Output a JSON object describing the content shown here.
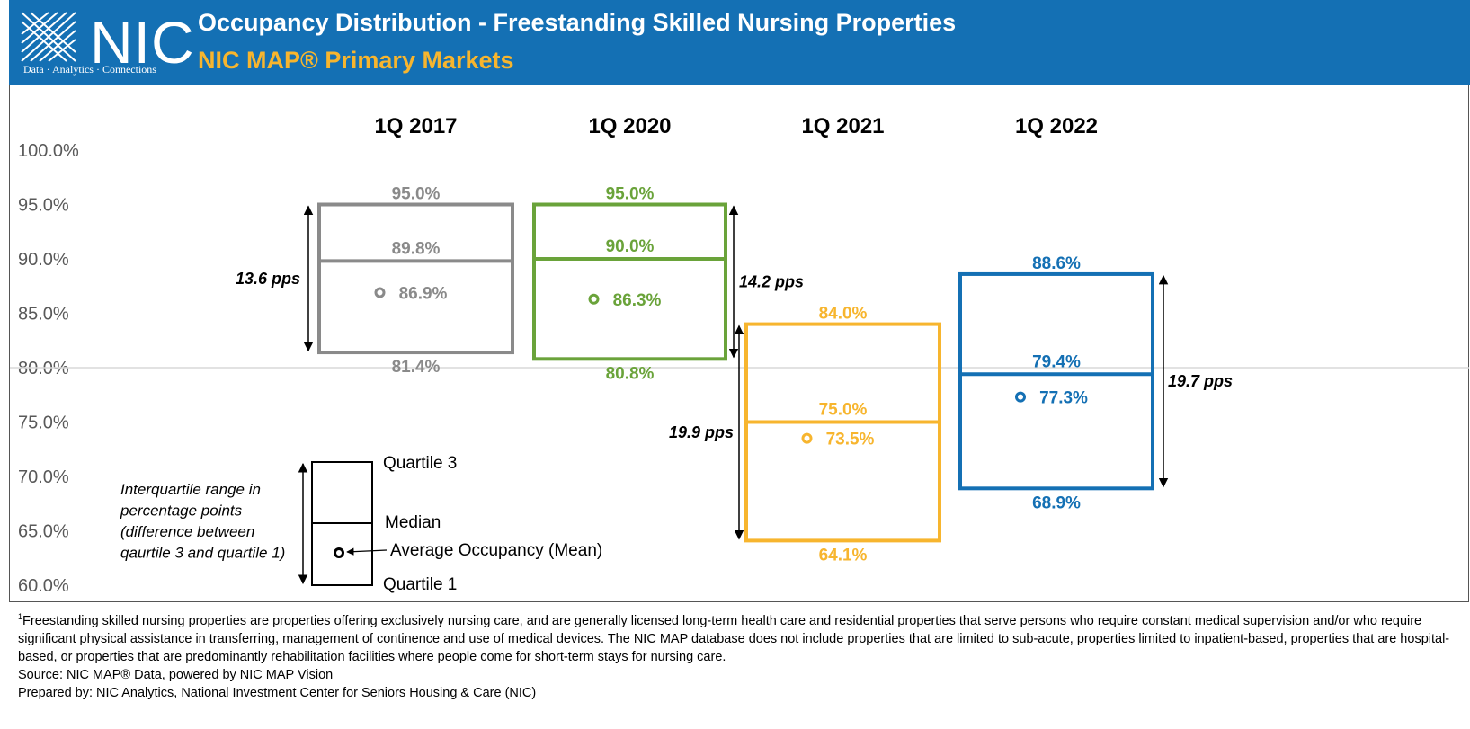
{
  "header": {
    "logo_text": "NIC",
    "logo_tagline": "Data · Analytics · Connections",
    "title": "Occupancy Distribution - Freestanding Skilled Nursing Properties",
    "subtitle": "NIC MAP® Primary Markets",
    "bg_color": "#1470b4",
    "subtitle_color": "#f7b52e"
  },
  "chart_data": {
    "type": "box",
    "ylim": [
      60,
      100
    ],
    "yticks": [
      "100.0%",
      "95.0%",
      "90.0%",
      "85.0%",
      "80.0%",
      "75.0%",
      "70.0%",
      "65.0%",
      "60.0%"
    ],
    "reference_line": 80,
    "series": [
      {
        "name": "1Q 2017",
        "color": "#8a8a8a",
        "q3": 95.0,
        "median": 89.8,
        "mean": 86.9,
        "q1": 81.4,
        "q3_label": "95.0%",
        "median_label": "89.8%",
        "mean_label": "86.9%",
        "q1_label": "81.4%",
        "iqr_label": "13.6 pps",
        "iqr_side": "left"
      },
      {
        "name": "1Q 2020",
        "color": "#6aa33a",
        "q3": 95.0,
        "median": 90.0,
        "mean": 86.3,
        "q1": 80.8,
        "q3_label": "95.0%",
        "median_label": "90.0%",
        "mean_label": "86.3%",
        "q1_label": "80.8%",
        "iqr_label": "14.2 pps",
        "iqr_side": "right"
      },
      {
        "name": "1Q 2021",
        "color": "#f7b52e",
        "q3": 84.0,
        "median": 75.0,
        "mean": 73.5,
        "q1": 64.1,
        "q3_label": "84.0%",
        "median_label": "75.0%",
        "mean_label": "73.5%",
        "q1_label": "64.1%",
        "iqr_label": "19.9 pps",
        "iqr_side": "left"
      },
      {
        "name": "1Q 2022",
        "color": "#1470b4",
        "q3": 88.6,
        "median": 79.4,
        "mean": 77.3,
        "q1": 68.9,
        "q3_label": "88.6%",
        "median_label": "79.4%",
        "mean_label": "77.3%",
        "q1_label": "68.9%",
        "iqr_label": "19.7 pps",
        "iqr_side": "right"
      }
    ],
    "legend": {
      "quartile3": "Quartile 3",
      "median": "Median",
      "mean": "Average Occupancy (Mean)",
      "quartile1": "Quartile 1",
      "iqr_note": [
        "Interquartile range in",
        "percentage points",
        "(difference between",
        "qaurtile 3 and quartile 1)"
      ]
    }
  },
  "footer": {
    "note": "Freestanding skilled nursing properties are properties offering exclusively nursing care, and are generally licensed long-term health care and residential properties that serve persons who require constant medical supervision and/or who require significant physical assistance in transferring, management of continence and use of medical devices. The NIC MAP database does not include properties that are limited to sub-acute, properties limited to inpatient-based, properties that are hospital-based, or properties that are predominantly rehabilitation facilities where people come for short-term stays for nursing care.",
    "note_marker": "1",
    "source": "Source: NIC MAP® Data, powered by NIC MAP Vision",
    "prepared": "Prepared by: NIC Analytics, National Investment Center for Seniors Housing & Care (NIC)"
  }
}
